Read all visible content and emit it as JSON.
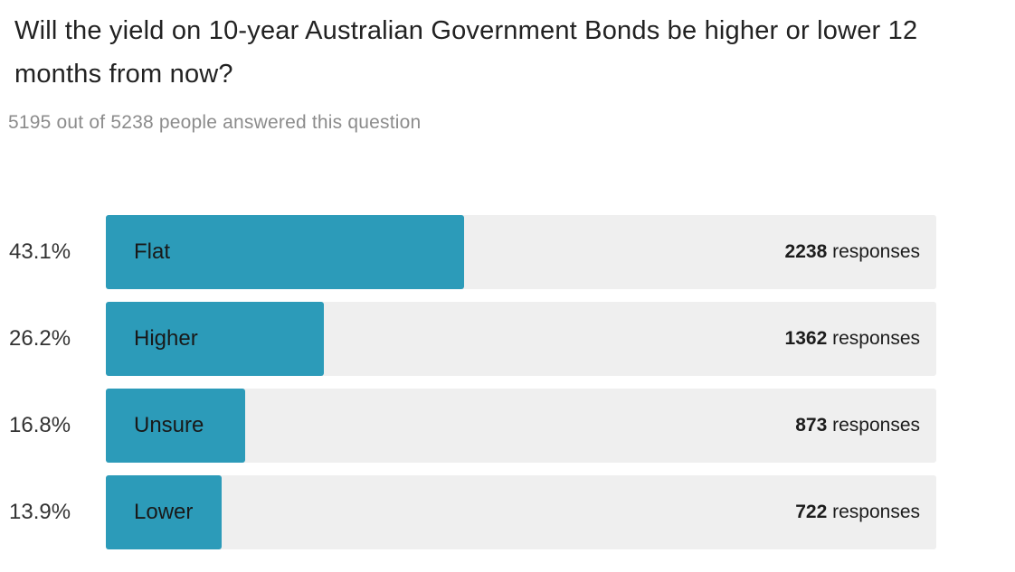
{
  "header": {
    "title": "Will the yield on 10-year Australian Government Bonds be higher or lower 12 months from now?",
    "subtitle": "5195 out of 5238 people answered this question"
  },
  "chart": {
    "colors": {
      "bar": "#2C9BB9",
      "track": "#EFEFEF"
    },
    "rows": [
      {
        "percent": "43.1%",
        "label": "Flat",
        "count": "2238",
        "responses_word": "responses"
      },
      {
        "percent": "26.2%",
        "label": "Higher",
        "count": "1362",
        "responses_word": "responses"
      },
      {
        "percent": "16.8%",
        "label": "Unsure",
        "count": "873",
        "responses_word": "responses"
      },
      {
        "percent": "13.9%",
        "label": "Lower",
        "count": "722",
        "responses_word": "responses"
      }
    ]
  },
  "chart_data": {
    "type": "bar",
    "orientation": "horizontal",
    "title": "Will the yield on 10-year Australian Government Bonds be higher or lower 12 months from now?",
    "subtitle": "5195 out of 5238 people answered this question",
    "categories": [
      "Flat",
      "Higher",
      "Unsure",
      "Lower"
    ],
    "series": [
      {
        "name": "percent_of_responses",
        "values": [
          43.1,
          26.2,
          16.8,
          13.9
        ]
      },
      {
        "name": "responses",
        "values": [
          2238,
          1362,
          873,
          722
        ]
      }
    ],
    "answered": 5195,
    "total_people": 5238,
    "xlim": [
      0,
      100
    ],
    "grid": false,
    "legend": false,
    "bar_color": "#2C9BB9",
    "track_color": "#EFEFEF"
  }
}
